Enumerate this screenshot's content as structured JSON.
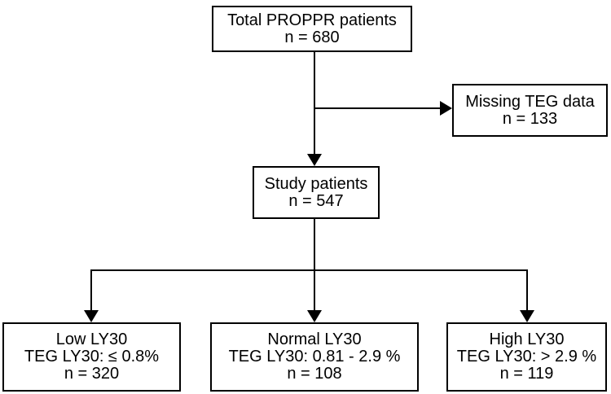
{
  "diagram": {
    "type": "patient-flow-chart",
    "colors": {
      "background": "#ffffff",
      "box_border": "#000000",
      "box_fill": "#ffffff",
      "line": "#000000",
      "text": "#000000"
    },
    "nodes": {
      "total": {
        "lines": [
          "Total PROPPR patients",
          "n = 680"
        ]
      },
      "missing": {
        "lines": [
          "Missing TEG data",
          "n = 133"
        ]
      },
      "study": {
        "lines": [
          "Study patients",
          "n = 547"
        ]
      },
      "low": {
        "lines": [
          "Low LY30",
          "TEG LY30: ≤ 0.8%",
          "n = 320"
        ]
      },
      "normal": {
        "lines": [
          "Normal LY30",
          "TEG LY30: 0.81 - 2.9 %",
          "n = 108"
        ]
      },
      "high": {
        "lines": [
          "High LY30",
          "TEG LY30: > 2.9 %",
          "n = 119"
        ]
      }
    }
  }
}
